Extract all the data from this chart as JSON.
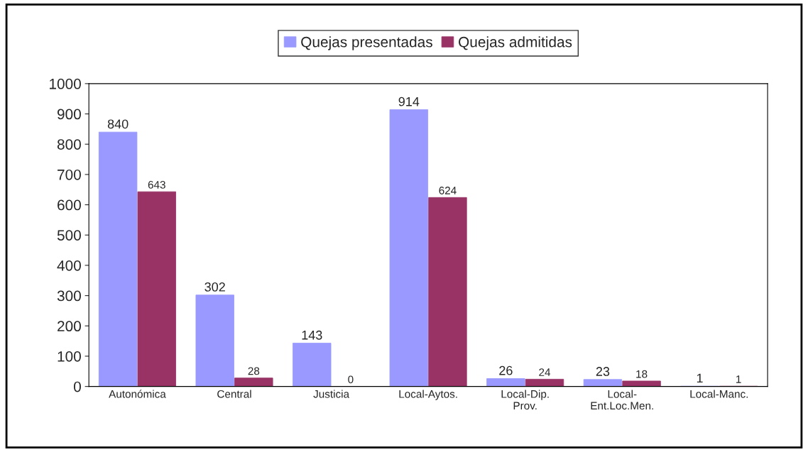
{
  "chart_data": {
    "type": "bar",
    "categories": [
      "Autonómica",
      "Central",
      "Justicia",
      "Local-Aytos.",
      "Local-Dip.\nProv.",
      "Local-\nEnt.Loc.Men.",
      "Local-Manc."
    ],
    "series": [
      {
        "name": "Quejas presentadas",
        "color": "#9999ff",
        "values": [
          840,
          302,
          143,
          914,
          26,
          23,
          1
        ]
      },
      {
        "name": "Quejas admitidas",
        "color": "#993366",
        "values": [
          643,
          28,
          0,
          624,
          24,
          18,
          1
        ]
      }
    ],
    "ylim": [
      0,
      1000
    ],
    "yticks": [
      0,
      100,
      200,
      300,
      400,
      500,
      600,
      700,
      800,
      900,
      1000
    ],
    "data_labels": true,
    "legend": "top",
    "grid": false
  }
}
